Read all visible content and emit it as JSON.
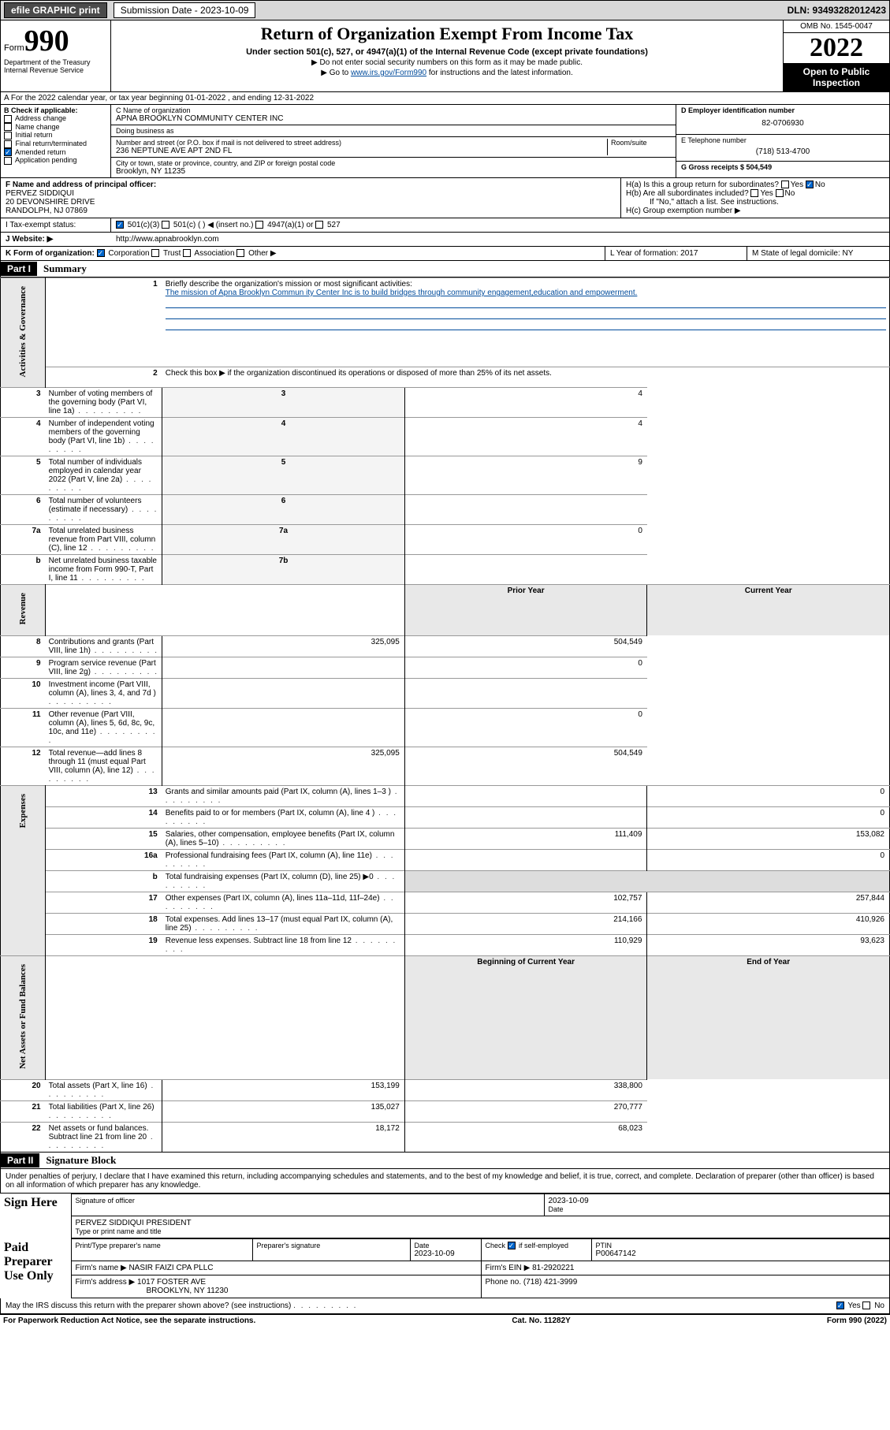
{
  "topbar": {
    "efile": "efile GRAPHIC print",
    "subdate_label": "Submission Date - 2023-10-09",
    "dln": "DLN: 93493282012423"
  },
  "header": {
    "form_word": "Form",
    "form_num": "990",
    "title": "Return of Organization Exempt From Income Tax",
    "subtitle": "Under section 501(c), 527, or 4947(a)(1) of the Internal Revenue Code (except private foundations)",
    "note1": "▶ Do not enter social security numbers on this form as it may be made public.",
    "note2_pre": "▶ Go to ",
    "note2_link": "www.irs.gov/Form990",
    "note2_post": " for instructions and the latest information.",
    "omb": "OMB No. 1545-0047",
    "year": "2022",
    "open": "Open to Public Inspection",
    "dept": "Department of the Treasury Internal Revenue Service"
  },
  "line_a": "A For the 2022 calendar year, or tax year beginning 01-01-2022   , and ending 12-31-2022",
  "col_b": {
    "title": "B Check if applicable:",
    "items": [
      "Address change",
      "Name change",
      "Initial return",
      "Final return/terminated",
      "Amended return",
      "Application pending"
    ],
    "checked_idx": 4
  },
  "col_c": {
    "name_lbl": "C Name of organization",
    "name": "APNA BROOKLYN COMMUNITY CENTER INC",
    "dba_lbl": "Doing business as",
    "dba": "",
    "addr_lbl": "Number and street (or P.O. box if mail is not delivered to street address)",
    "room_lbl": "Room/suite",
    "addr": "236 NEPTUNE AVE APT 2ND FL",
    "city_lbl": "City or town, state or province, country, and ZIP or foreign postal code",
    "city": "Brooklyn, NY  11235"
  },
  "col_d": {
    "ein_lbl": "D Employer identification number",
    "ein": "82-0706930",
    "tel_lbl": "E Telephone number",
    "tel": "(718) 513-4700",
    "gross_lbl": "G Gross receipts $ 504,549"
  },
  "fh": {
    "f_lbl": "F  Name and address of principal officer:",
    "f_name": "PERVEZ SIDDIQUI",
    "f_addr1": "20 DEVONSHIRE DRIVE",
    "f_addr2": "RANDOLPH, NJ  07869",
    "ha": "H(a)  Is this a group return for subordinates?",
    "hb": "H(b)  Are all subordinates included?",
    "hb_note": "If \"No,\" attach a list. See instructions.",
    "hc": "H(c)  Group exemption number ▶",
    "yes": "Yes",
    "no": "No"
  },
  "row_i": {
    "label": "I   Tax-exempt status:",
    "opts": [
      "501(c)(3)",
      "501(c) (  ) ◀ (insert no.)",
      "4947(a)(1) or",
      "527"
    ],
    "checked": 0
  },
  "row_j": {
    "label": "J   Website: ▶",
    "val": "http://www.apnabrooklyn.com"
  },
  "row_k": {
    "label": "K Form of organization:",
    "opts": [
      "Corporation",
      "Trust",
      "Association",
      "Other ▶"
    ],
    "checked": 0,
    "l": "L Year of formation: 2017",
    "m": "M State of legal domicile: NY"
  },
  "part1": {
    "hdr": "Part I",
    "title": "Summary"
  },
  "summary": {
    "q1": "Briefly describe the organization's mission or most significant activities:",
    "mission": "The mission of Apna Brooklyn Commun ity Center Inc is to build bridges through community engagement,education and empowerment.",
    "q2": "Check this box ▶        if the organization discontinued its operations or disposed of more than 25% of its net assets.",
    "rows_gov": [
      {
        "n": "3",
        "t": "Number of voting members of the governing body (Part VI, line 1a)",
        "k": "3",
        "v": "4"
      },
      {
        "n": "4",
        "t": "Number of independent voting members of the governing body (Part VI, line 1b)",
        "k": "4",
        "v": "4"
      },
      {
        "n": "5",
        "t": "Total number of individuals employed in calendar year 2022 (Part V, line 2a)",
        "k": "5",
        "v": "9"
      },
      {
        "n": "6",
        "t": "Total number of volunteers (estimate if necessary)",
        "k": "6",
        "v": ""
      },
      {
        "n": "7a",
        "t": "Total unrelated business revenue from Part VIII, column (C), line 12",
        "k": "7a",
        "v": "0"
      },
      {
        "n": "b",
        "t": "Net unrelated business taxable income from Form 990-T, Part I, line 11",
        "k": "7b",
        "v": ""
      }
    ],
    "prior": "Prior Year",
    "current": "Current Year",
    "rows_rev": [
      {
        "n": "8",
        "t": "Contributions and grants (Part VIII, line 1h)",
        "p": "325,095",
        "c": "504,549"
      },
      {
        "n": "9",
        "t": "Program service revenue (Part VIII, line 2g)",
        "p": "",
        "c": "0"
      },
      {
        "n": "10",
        "t": "Investment income (Part VIII, column (A), lines 3, 4, and 7d )",
        "p": "",
        "c": ""
      },
      {
        "n": "11",
        "t": "Other revenue (Part VIII, column (A), lines 5, 6d, 8c, 9c, 10c, and 11e)",
        "p": "",
        "c": "0"
      },
      {
        "n": "12",
        "t": "Total revenue—add lines 8 through 11 (must equal Part VIII, column (A), line 12)",
        "p": "325,095",
        "c": "504,549"
      }
    ],
    "rows_exp": [
      {
        "n": "13",
        "t": "Grants and similar amounts paid (Part IX, column (A), lines 1–3 )",
        "p": "",
        "c": "0"
      },
      {
        "n": "14",
        "t": "Benefits paid to or for members (Part IX, column (A), line 4 )",
        "p": "",
        "c": "0"
      },
      {
        "n": "15",
        "t": "Salaries, other compensation, employee benefits (Part IX, column (A), lines 5–10)",
        "p": "111,409",
        "c": "153,082"
      },
      {
        "n": "16a",
        "t": "Professional fundraising fees (Part IX, column (A), line 11e)",
        "p": "",
        "c": "0"
      },
      {
        "n": "b",
        "t": "Total fundraising expenses (Part IX, column (D), line 25) ▶0",
        "p": "—",
        "c": "—"
      },
      {
        "n": "17",
        "t": "Other expenses (Part IX, column (A), lines 11a–11d, 11f–24e)",
        "p": "102,757",
        "c": "257,844"
      },
      {
        "n": "18",
        "t": "Total expenses. Add lines 13–17 (must equal Part IX, column (A), line 25)",
        "p": "214,166",
        "c": "410,926"
      },
      {
        "n": "19",
        "t": "Revenue less expenses. Subtract line 18 from line 12",
        "p": "110,929",
        "c": "93,623"
      }
    ],
    "begin": "Beginning of Current Year",
    "end": "End of Year",
    "rows_net": [
      {
        "n": "20",
        "t": "Total assets (Part X, line 16)",
        "p": "153,199",
        "c": "338,800"
      },
      {
        "n": "21",
        "t": "Total liabilities (Part X, line 26)",
        "p": "135,027",
        "c": "270,777"
      },
      {
        "n": "22",
        "t": "Net assets or fund balances. Subtract line 21 from line 20",
        "p": "18,172",
        "c": "68,023"
      }
    ],
    "side_labels": [
      "Activities & Governance",
      "Revenue",
      "Expenses",
      "Net Assets or Fund Balances"
    ]
  },
  "part2": {
    "hdr": "Part II",
    "title": "Signature Block"
  },
  "sig": {
    "penalty": "Under penalties of perjury, I declare that I have examined this return, including accompanying schedules and statements, and to the best of my knowledge and belief, it is true, correct, and complete. Declaration of preparer (other than officer) is based on all information of which preparer has any knowledge.",
    "sign_here": "Sign Here",
    "sig_officer": "Signature of officer",
    "sig_date": "2023-10-09",
    "date_lbl": "Date",
    "officer_name": "PERVEZ SIDDIQUI  PRESIDENT",
    "type_name": "Type or print name and title",
    "paid": "Paid Preparer Use Only",
    "prep_name_lbl": "Print/Type preparer's name",
    "prep_sig_lbl": "Preparer's signature",
    "prep_date": "2023-10-09",
    "check_self": "Check         if self-employed",
    "ptin_lbl": "PTIN",
    "ptin": "P00647142",
    "firm_name_lbl": "Firm's name    ▶",
    "firm_name": "NASIR FAIZI CPA PLLC",
    "firm_ein_lbl": "Firm's EIN ▶",
    "firm_ein": "81-2920221",
    "firm_addr_lbl": "Firm's address ▶",
    "firm_addr1": "1017 FOSTER AVE",
    "firm_addr2": "BROOKLYN, NY  11230",
    "firm_phone_lbl": "Phone no.",
    "firm_phone": "(718) 421-3999",
    "may_irs": "May the IRS discuss this return with the preparer shown above? (see instructions)"
  },
  "footer": {
    "left": "For Paperwork Reduction Act Notice, see the separate instructions.",
    "mid": "Cat. No. 11282Y",
    "right": "Form 990 (2022)"
  }
}
